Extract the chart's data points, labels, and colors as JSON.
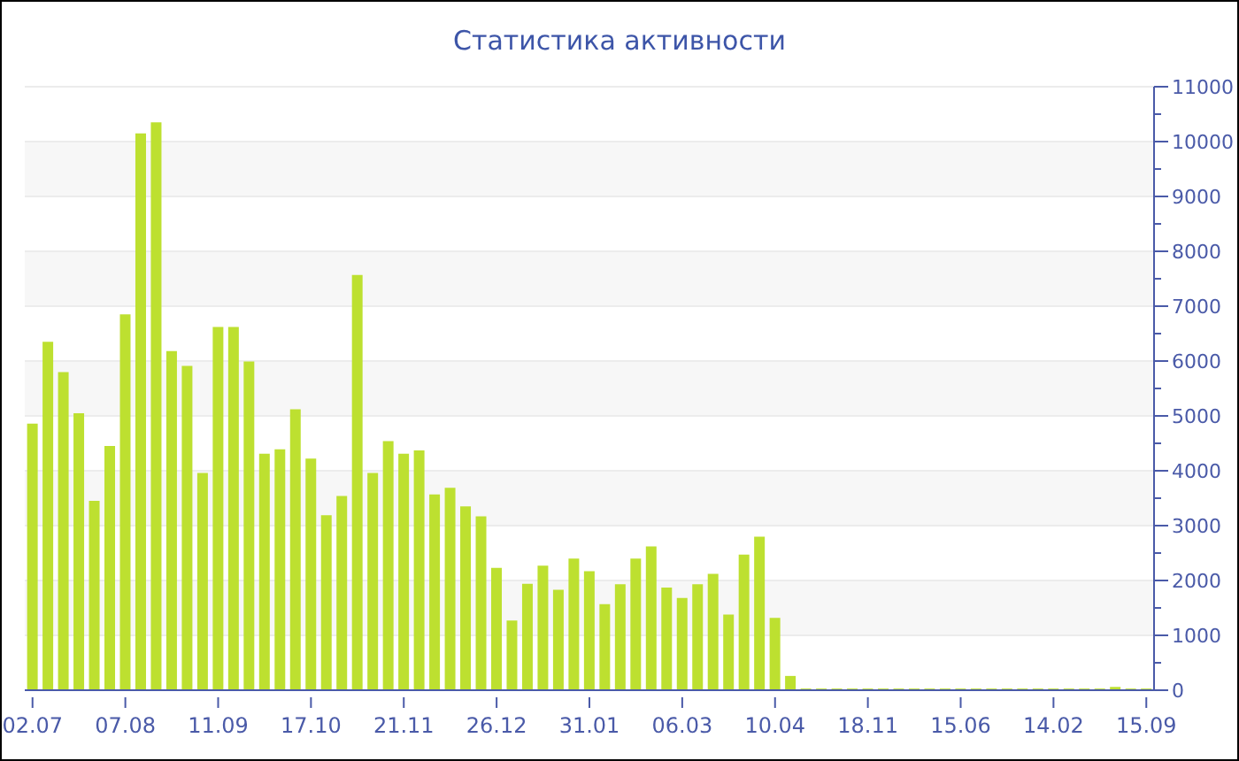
{
  "chart_data": {
    "type": "bar",
    "title": "Статистика активности",
    "categories": [
      "02.07",
      null,
      null,
      null,
      null,
      null,
      "07.08",
      null,
      null,
      null,
      null,
      null,
      "11.09",
      null,
      null,
      null,
      null,
      null,
      "17.10",
      null,
      null,
      null,
      null,
      null,
      "21.11",
      null,
      null,
      null,
      null,
      null,
      "26.12",
      null,
      null,
      null,
      null,
      null,
      "31.01",
      null,
      null,
      null,
      null,
      null,
      "06.03",
      null,
      null,
      null,
      null,
      null,
      "10.04",
      null,
      null,
      null,
      null,
      null,
      "18.11",
      null,
      null,
      null,
      null,
      null,
      "15.06",
      null,
      null,
      null,
      null,
      null,
      "14.02",
      null,
      null,
      null,
      null,
      null,
      "15.09"
    ],
    "values": [
      4860,
      6350,
      5800,
      5050,
      3450,
      4450,
      6850,
      10150,
      10350,
      6180,
      5910,
      3960,
      6620,
      6620,
      5990,
      4310,
      4390,
      5120,
      4220,
      3190,
      3540,
      7570,
      3960,
      4540,
      4310,
      4370,
      3570,
      3690,
      3350,
      3170,
      2230,
      1270,
      1940,
      2270,
      1830,
      2400,
      2170,
      1570,
      1930,
      2400,
      2620,
      1870,
      1680,
      1930,
      2120,
      1380,
      2470,
      2800,
      1320,
      260,
      30,
      30,
      30,
      30,
      30,
      30,
      30,
      30,
      30,
      30,
      30,
      30,
      30,
      30,
      30,
      30,
      30,
      30,
      30,
      30,
      60,
      30,
      30
    ],
    "color": "#bde030",
    "ylim": [
      0,
      11000
    ],
    "yticks": [
      0,
      {
        "value": 500,
        "label": null
      },
      1000,
      {
        "value": 1500,
        "label": null
      },
      2000,
      {
        "value": 2500,
        "label": null
      },
      3000,
      {
        "value": 3500,
        "label": null
      },
      4000,
      {
        "value": 4500,
        "label": null
      },
      5000,
      {
        "value": 5500,
        "label": null
      },
      6000,
      {
        "value": 6500,
        "label": null
      },
      7000,
      {
        "value": 7500,
        "label": null
      },
      8000,
      {
        "value": 8500,
        "label": null
      },
      9000,
      {
        "value": 9500,
        "label": null
      },
      10000,
      {
        "value": 10500,
        "label": null
      },
      11000
    ],
    "grid": "y",
    "legend": false
  }
}
